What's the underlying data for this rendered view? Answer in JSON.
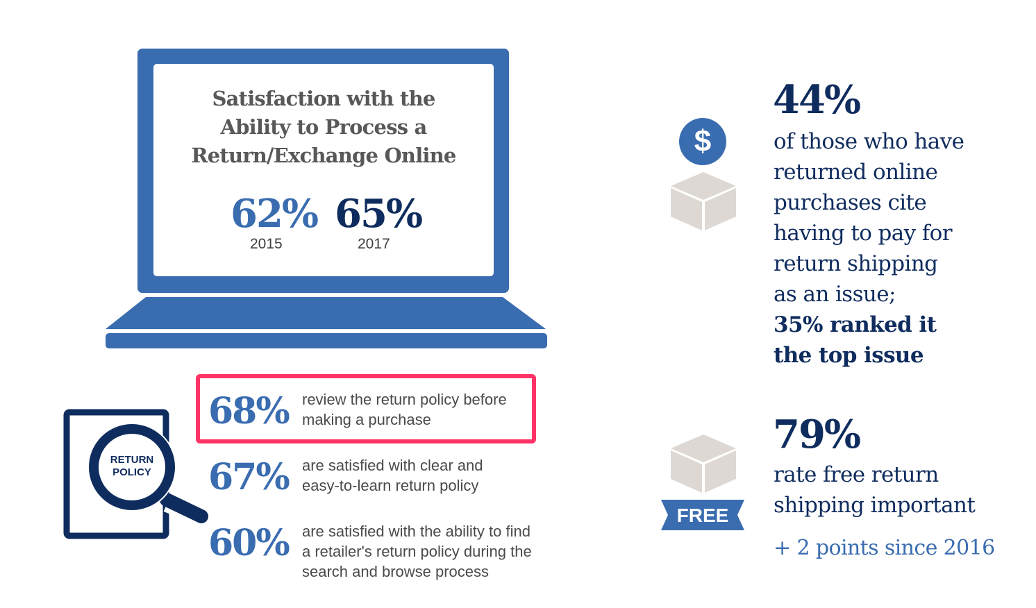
{
  "laptop": {
    "title_lines": [
      "Satisfaction with the",
      "Ability to Process a",
      "Return/Exchange Online"
    ],
    "stats": [
      {
        "value": "62%",
        "year": "2015",
        "color": "#3a6cb0"
      },
      {
        "value": "65%",
        "year": "2017",
        "color": "#0f2c5e"
      }
    ]
  },
  "policy_icon": {
    "label_lines": [
      "RETURN",
      "POLICY"
    ],
    "icon": "magnifier-document-icon"
  },
  "policy_stats": [
    {
      "value": "68%",
      "text_lines": [
        "review the return policy before",
        "making a purchase"
      ],
      "highlighted": true
    },
    {
      "value": "67%",
      "text_lines": [
        "are satisfied with clear and",
        "easy-to-learn return policy"
      ],
      "highlighted": false
    },
    {
      "value": "60%",
      "text_lines": [
        "are satisfied with the ability to find",
        "a retailer's return policy during the",
        "search and browse process"
      ],
      "highlighted": false
    }
  ],
  "shipping_cost": {
    "icon": "dollar-box-icon",
    "dollar_symbol": "$",
    "value": "44%",
    "text_lines": [
      "of those who have",
      "returned online",
      "purchases cite",
      "having to pay for",
      "return shipping",
      "as an issue;"
    ],
    "bold_lines": [
      "35% ranked it",
      "the top issue"
    ]
  },
  "free_shipping": {
    "icon": "free-box-icon",
    "badge": "FREE",
    "value": "79%",
    "text_lines": [
      "rate free return",
      "shipping important"
    ],
    "change": "+ 2 points since 2016"
  },
  "colors": {
    "primary_blue": "#3a6cb0",
    "navy": "#0f2c5e",
    "highlight_pink": "#ff3366",
    "box_gray": "#ddd8d3"
  }
}
